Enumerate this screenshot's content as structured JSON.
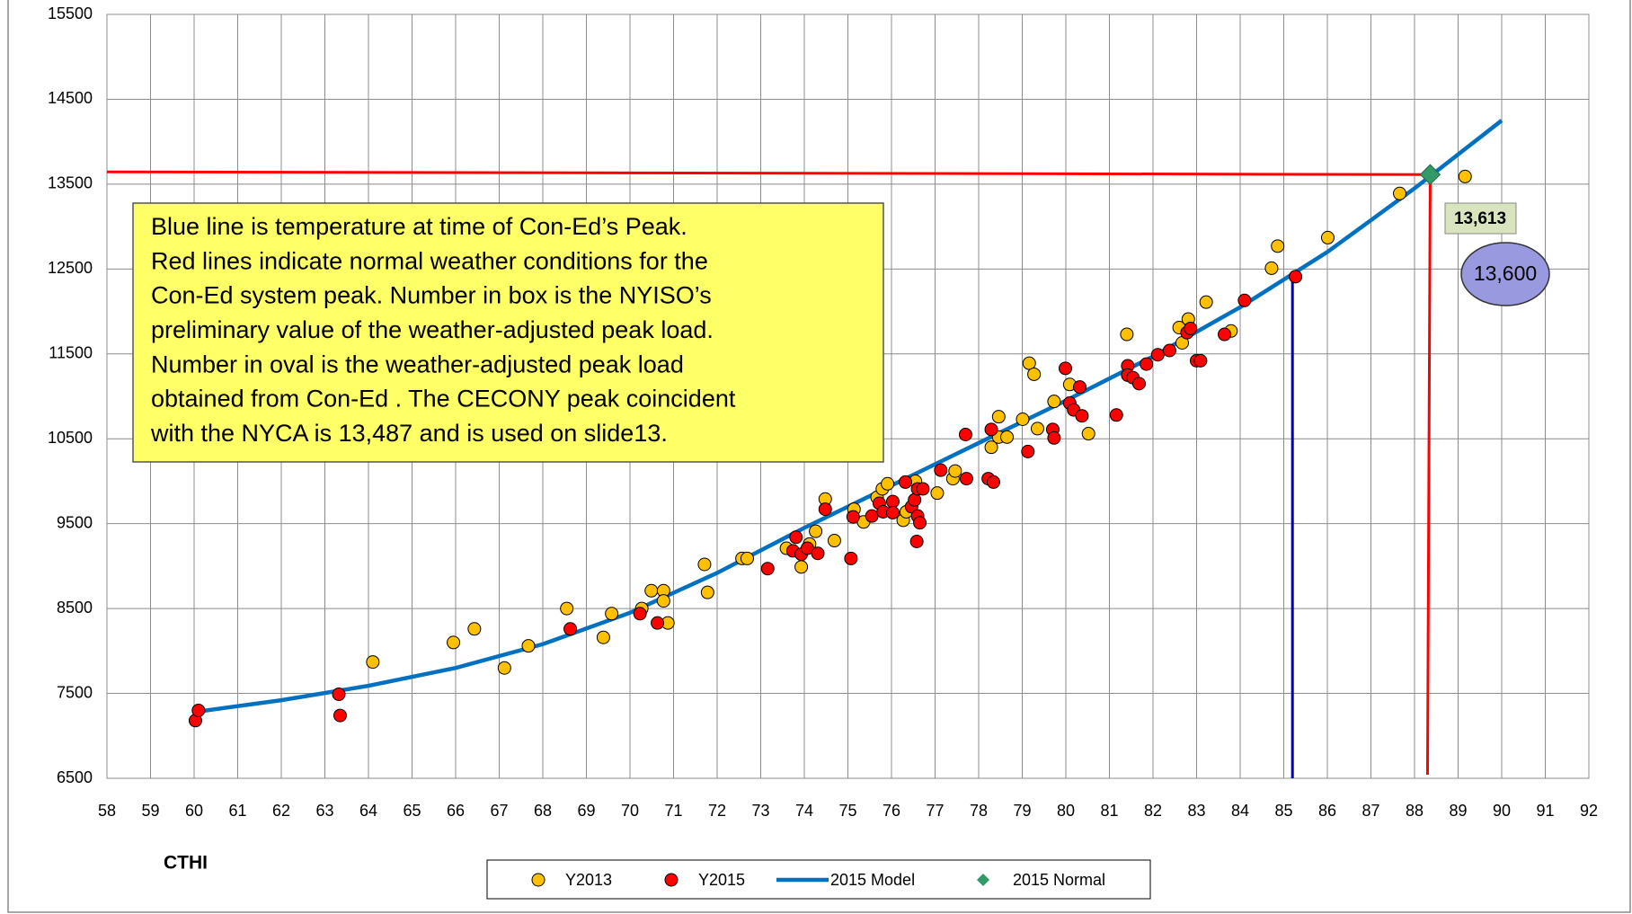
{
  "chart_data": {
    "type": "scatter",
    "x_label": "CTHI",
    "xlim": [
      58,
      92
    ],
    "ylim": [
      6500,
      15500
    ],
    "xticks": [
      58,
      59,
      60,
      61,
      62,
      63,
      64,
      65,
      66,
      67,
      68,
      69,
      70,
      71,
      72,
      73,
      74,
      75,
      76,
      77,
      78,
      79,
      80,
      81,
      82,
      83,
      84,
      85,
      86,
      87,
      88,
      89,
      90,
      91,
      92
    ],
    "yticks": [
      6500,
      7500,
      8500,
      9500,
      10500,
      11500,
      12500,
      13500,
      14500,
      15500
    ],
    "grid": true,
    "series": [
      {
        "name": "Y2013",
        "kind": "points",
        "color": "#ffc000",
        "x": [
          64.1,
          65.95,
          66.43,
          67.12,
          67.67,
          68.55,
          69.39,
          69.58,
          70.27,
          70.49,
          70.77,
          70.77,
          70.87,
          71.71,
          71.78,
          72.57,
          72.69,
          73.59,
          73.93,
          74.12,
          74.26,
          74.48,
          74.69,
          75.14,
          75.36,
          75.67,
          75.79,
          75.91,
          76.27,
          76.34,
          76.55,
          77.05,
          77.41,
          77.46,
          78.29,
          78.46,
          78.46,
          78.65,
          79.01,
          79.16,
          79.27,
          79.35,
          79.73,
          80.09,
          80.52,
          81.4,
          82.6,
          82.67,
          82.81,
          83.22,
          83.79,
          84.72,
          84.86,
          86.01,
          87.66,
          89.16
        ],
        "values": [
          7870,
          8100,
          8260,
          7800,
          8060,
          8500,
          8160,
          8440,
          8500,
          8710,
          8710,
          8590,
          8330,
          9020,
          8690,
          9090,
          9090,
          9210,
          8990,
          9260,
          9410,
          9790,
          9300,
          9670,
          9520,
          9810,
          9910,
          9970,
          9540,
          9640,
          10000,
          9860,
          10030,
          10120,
          10400,
          10760,
          10520,
          10520,
          10730,
          11390,
          11260,
          10620,
          10940,
          11140,
          10560,
          11730,
          11810,
          11630,
          11910,
          12110,
          11770,
          12510,
          12770,
          12870,
          13390,
          13590
        ]
      },
      {
        "name": "Y2015",
        "kind": "points",
        "color": "#ff0000",
        "x": [
          60.03,
          60.1,
          63.32,
          63.35,
          68.63,
          70.23,
          70.63,
          73.16,
          73.81,
          73.74,
          73.93,
          74.07,
          74.31,
          74.48,
          75.07,
          75.12,
          75.55,
          75.72,
          75.81,
          76.03,
          76.03,
          76.32,
          76.46,
          76.53,
          76.6,
          76.6,
          76.65,
          76.58,
          76.72,
          77.13,
          77.7,
          77.72,
          78.22,
          78.29,
          78.34,
          79.13,
          79.7,
          79.73,
          79.99,
          80.09,
          80.18,
          80.32,
          80.37,
          81.16,
          81.42,
          81.42,
          81.54,
          81.68,
          81.85,
          82.11,
          82.38,
          82.78,
          82.86,
          83.0,
          83.09,
          83.64,
          84.1,
          85.27
        ],
        "values": [
          7180,
          7300,
          7490,
          7240,
          8260,
          8440,
          8330,
          8970,
          9340,
          9180,
          9140,
          9210,
          9150,
          9670,
          9090,
          9580,
          9590,
          9740,
          9640,
          9760,
          9630,
          9990,
          9700,
          9780,
          9910,
          9590,
          9510,
          9290,
          9910,
          10130,
          10550,
          10030,
          10030,
          10610,
          9990,
          10350,
          10610,
          10510,
          11330,
          10920,
          10840,
          11110,
          10770,
          10780,
          11360,
          11250,
          11220,
          11150,
          11380,
          11490,
          11540,
          11750,
          11800,
          11420,
          11420,
          11730,
          12130,
          12410
        ]
      },
      {
        "name": "2015 Model",
        "kind": "line",
        "color": "#0070c0",
        "x": [
          60,
          62,
          64,
          66,
          68,
          70,
          72,
          74,
          76,
          78,
          80,
          82,
          84,
          86,
          88,
          90
        ],
        "values": [
          7280,
          7420,
          7590,
          7800,
          8080,
          8450,
          8920,
          9450,
          9950,
          10450,
          10950,
          11470,
          12050,
          12700,
          13450,
          14250
        ]
      },
      {
        "name": "2015 Normal",
        "kind": "diamond",
        "color": "#339966",
        "x": [
          88.36
        ],
        "values": [
          13613
        ],
        "value_labels": [
          "13,613"
        ]
      }
    ],
    "peak_temperature": 85.2,
    "oval": {
      "value": 13600,
      "label": "13,600"
    },
    "note_lines": [
      "Blue line is temperature at time of Con-Ed’s  Peak.",
      "Red lines indicate normal weather conditions for the",
      "Con-Ed  system peak. Number in box is the NYISO’s",
      "preliminary value of the weather-adjusted peak load.",
      "Number in oval is the weather-adjusted peak load",
      "obtained from Con-Ed .  The CECONY peak coincident",
      "with the NYCA is 13,487 and is used on slide13."
    ]
  }
}
